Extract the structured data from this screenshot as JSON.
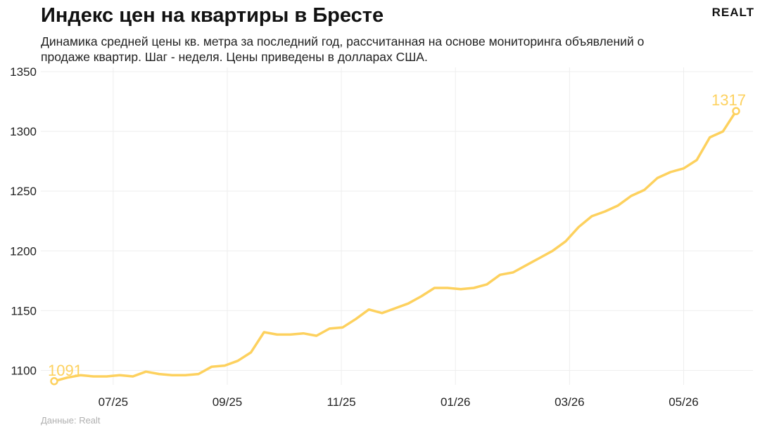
{
  "header": {
    "title": "Индекс цен на квартиры в Бресте",
    "subtitle": "Динамика средней цены кв. метра за последний год, рассчитанная на основе мониторинга объявлений о продаже квартир. Шаг - неделя. Цены приведены в долларах США.",
    "brand": "REALT"
  },
  "footer": {
    "source": "Данные: Realt"
  },
  "colors": {
    "line": "#fdd15e",
    "grid": "#eeeeee",
    "text": "#222222"
  },
  "chart_data": {
    "type": "line",
    "title": "Индекс цен на квартиры в Бресте",
    "xlabel": "",
    "ylabel": "",
    "ylim": [
      1075,
      1350
    ],
    "yticks": [
      1100,
      1150,
      1200,
      1250,
      1300,
      1350
    ],
    "xtick_labels": [
      "07/25",
      "09/25",
      "11/25",
      "01/26",
      "03/26",
      "05/26"
    ],
    "xtick_week_index": [
      4.5,
      13.2,
      21.9,
      30.6,
      39.3,
      48.0
    ],
    "grid": true,
    "start_label": "1091",
    "end_label": "1317",
    "series": [
      {
        "values": [
          1091,
          1094,
          1096,
          1095,
          1095,
          1096,
          1095,
          1099,
          1097,
          1096,
          1096,
          1097,
          1103,
          1104,
          1108,
          1115,
          1132,
          1130,
          1130,
          1131,
          1129,
          1135,
          1136,
          1143,
          1151,
          1148,
          1152,
          1156,
          1162,
          1169,
          1169,
          1168,
          1169,
          1172,
          1180,
          1182,
          1188,
          1194,
          1200,
          1208,
          1220,
          1229,
          1233,
          1238,
          1246,
          1251,
          1261,
          1266,
          1269,
          1276,
          1295,
          1300,
          1317
        ]
      }
    ]
  }
}
